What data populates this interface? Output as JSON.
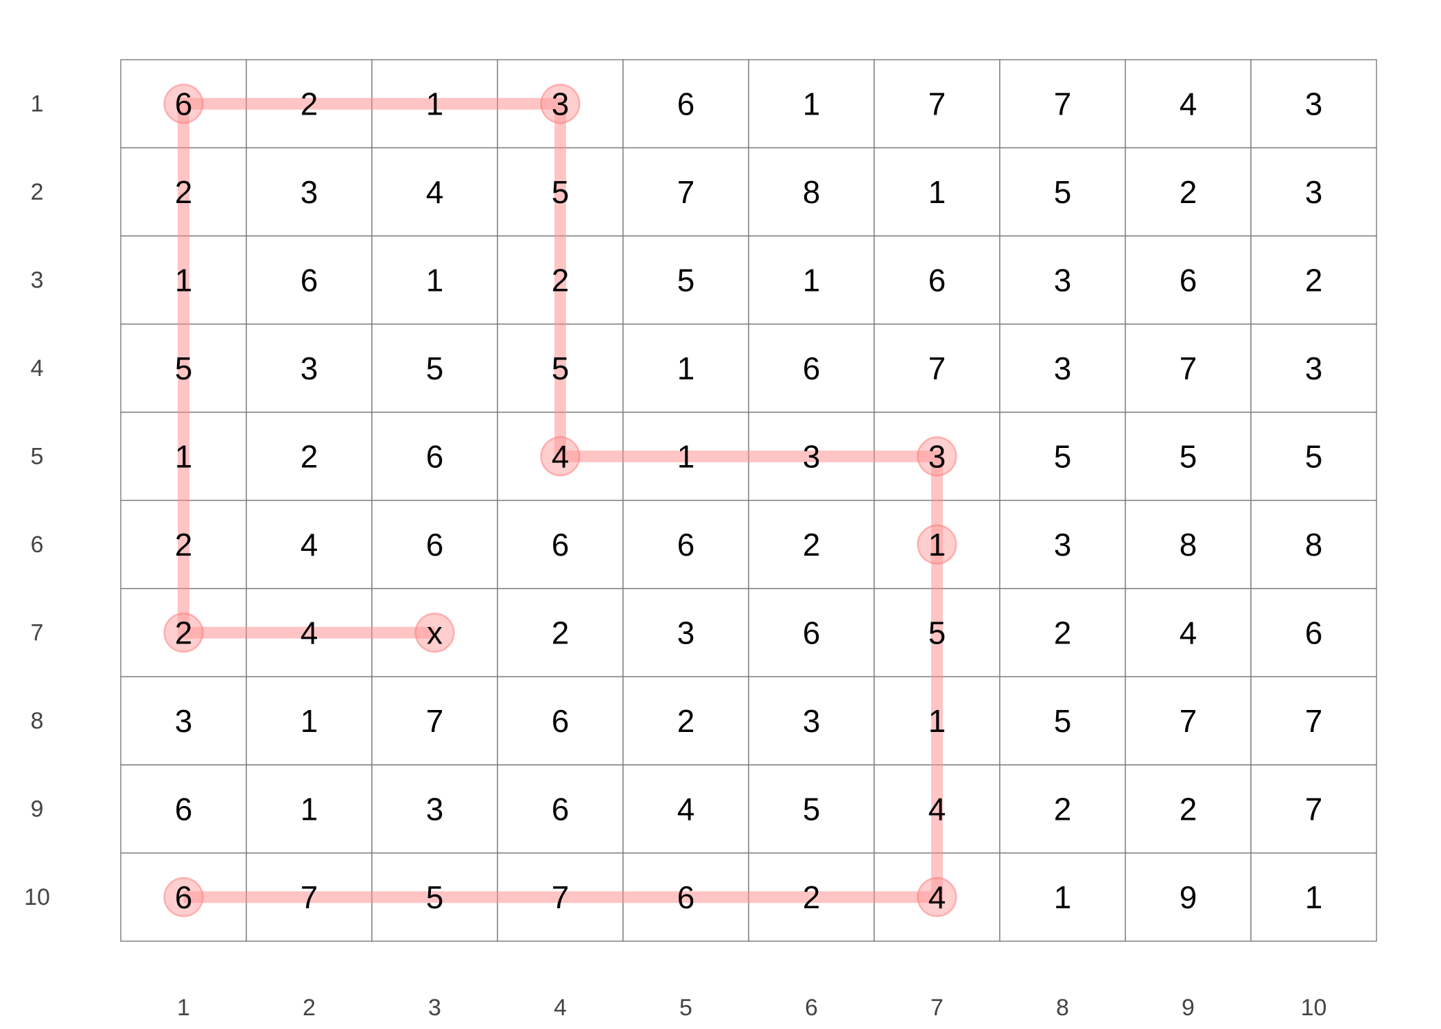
{
  "grid": {
    "rows": 10,
    "cols": 10,
    "row_labels": [
      "1",
      "2",
      "3",
      "4",
      "5",
      "6",
      "7",
      "8",
      "9",
      "10"
    ],
    "col_labels": [
      "1",
      "2",
      "3",
      "4",
      "5",
      "6",
      "7",
      "8",
      "9",
      "10"
    ],
    "cells": [
      [
        "6",
        "2",
        "1",
        "3",
        "6",
        "1",
        "7",
        "7",
        "4",
        "3"
      ],
      [
        "2",
        "3",
        "4",
        "5",
        "7",
        "8",
        "1",
        "5",
        "2",
        "3"
      ],
      [
        "1",
        "6",
        "1",
        "2",
        "5",
        "1",
        "6",
        "3",
        "6",
        "2"
      ],
      [
        "5",
        "3",
        "5",
        "5",
        "1",
        "6",
        "7",
        "3",
        "7",
        "3"
      ],
      [
        "1",
        "2",
        "6",
        "4",
        "1",
        "3",
        "3",
        "5",
        "5",
        "5"
      ],
      [
        "2",
        "4",
        "6",
        "6",
        "6",
        "2",
        "1",
        "3",
        "8",
        "8"
      ],
      [
        "2",
        "4",
        "x",
        "2",
        "3",
        "6",
        "5",
        "2",
        "4",
        "6"
      ],
      [
        "3",
        "1",
        "7",
        "6",
        "2",
        "3",
        "1",
        "5",
        "7",
        "7"
      ],
      [
        "6",
        "1",
        "3",
        "6",
        "4",
        "5",
        "4",
        "2",
        "2",
        "7"
      ],
      [
        "6",
        "7",
        "5",
        "7",
        "6",
        "2",
        "4",
        "1",
        "9",
        "1"
      ]
    ]
  },
  "path": {
    "cells": [
      [
        10,
        1
      ],
      [
        10,
        7
      ],
      [
        6,
        7
      ],
      [
        5,
        7
      ],
      [
        5,
        4
      ],
      [
        1,
        4
      ],
      [
        1,
        1
      ],
      [
        7,
        1
      ],
      [
        7,
        3
      ]
    ],
    "markers": [
      [
        1,
        1
      ],
      [
        1,
        4
      ],
      [
        5,
        4
      ],
      [
        5,
        7
      ],
      [
        6,
        7
      ],
      [
        10,
        7
      ],
      [
        10,
        1
      ],
      [
        7,
        1
      ],
      [
        7,
        3
      ]
    ]
  },
  "colors": {
    "path_line": "#ff8a8a",
    "path_node_fill": "#ff9d9d",
    "path_node_stroke": "#ff6b6b",
    "grid_line": "#7a7a7a",
    "cell_text": "#000000",
    "axis_text": "#444444"
  }
}
